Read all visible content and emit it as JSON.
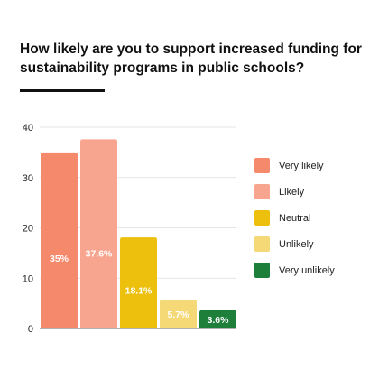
{
  "chart_data": {
    "type": "bar",
    "title": "How likely are you to support increased funding for sustainability programs in public schools?",
    "categories": [
      "Very likely",
      "Likely",
      "Neutral",
      "Unlikely",
      "Very unlikely"
    ],
    "values": [
      35,
      37.6,
      18.1,
      5.7,
      3.6
    ],
    "data_labels": [
      "35%",
      "37.6%",
      "18.1%",
      "5.7%",
      "3.6%"
    ],
    "colors": [
      "#f4896b",
      "#f7a58f",
      "#ecc00c",
      "#f6d977",
      "#1d7f3a"
    ],
    "ylim": [
      0,
      40
    ],
    "yticks": [
      0,
      10,
      20,
      30,
      40
    ],
    "xlabel": "",
    "ylabel": "",
    "grid": true,
    "legend": {
      "position": "right",
      "entries": [
        "Very likely",
        "Likely",
        "Neutral",
        "Unlikely",
        "Very unlikely"
      ]
    }
  }
}
